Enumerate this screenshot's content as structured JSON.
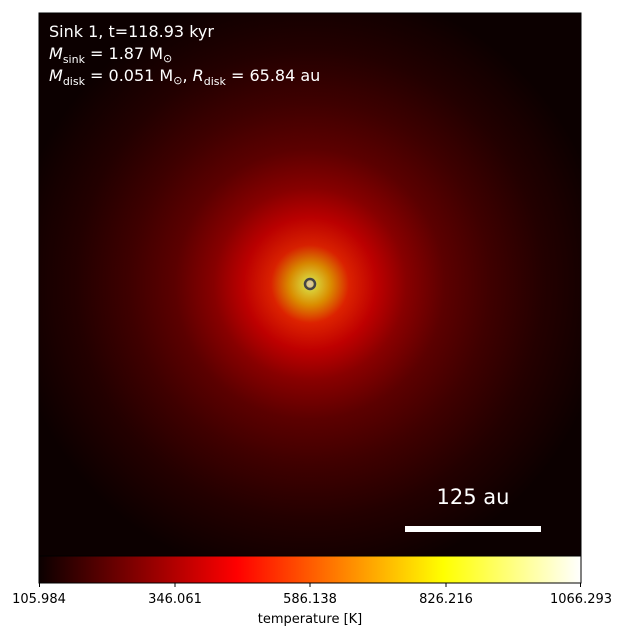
{
  "annotation": {
    "line1": "Sink 1, t=118.93 kyr",
    "line2_symbol": "M",
    "line2_sub": "sink",
    "line2_rest": " = 1.87 M",
    "line2_sun": "⊙",
    "line3_symbol": "M",
    "line3_sub": "disk",
    "line3_mid": " = 0.051 M",
    "line3_sun": "⊙",
    "line3_comma": ", ",
    "line3_r": "R",
    "line3_rsub": "disk",
    "line3_rest": " = 65.84 au",
    "text_color": "#ffffff"
  },
  "scale_bar": {
    "label": "125 au",
    "color": "#ffffff"
  },
  "colorbar": {
    "label": "temperature [K]",
    "colormap": "hot",
    "min": 105.984,
    "max": 1066.293,
    "ticks": [
      "105.984",
      "346.061",
      "586.138",
      "826.216",
      "1066.293"
    ]
  },
  "sink_marker": {
    "color": "#444444"
  }
}
